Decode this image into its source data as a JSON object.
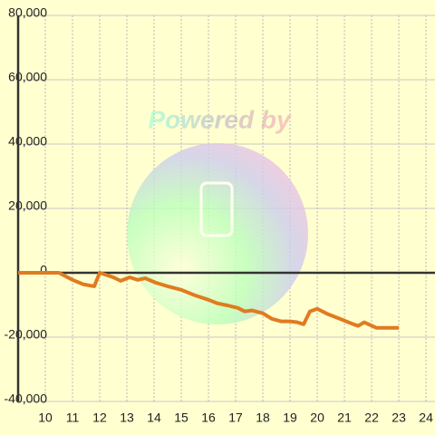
{
  "watermark": "Powered by",
  "chart_data": {
    "type": "line",
    "color": "#e07b20",
    "grid": true,
    "x": [
      9,
      10.5,
      11,
      11.4,
      11.8,
      12,
      12.5,
      12.77,
      13.1,
      13.4,
      13.67,
      14.07,
      14.5,
      15,
      15.5,
      16,
      16.33,
      16.67,
      17.07,
      17.33,
      17.6,
      18,
      18.33,
      18.67,
      19,
      19.27,
      19.5,
      19.73,
      20,
      20.4,
      20.83,
      21.33,
      21.5,
      21.73,
      22.17,
      23
    ],
    "values": [
      0,
      0,
      -2200,
      -3600,
      -4200,
      0,
      -1400,
      -2500,
      -1400,
      -2200,
      -1700,
      -3100,
      -4200,
      -5300,
      -7000,
      -8400,
      -9500,
      -10100,
      -10900,
      -12000,
      -11700,
      -12600,
      -14300,
      -15100,
      -15100,
      -15400,
      -16000,
      -12000,
      -11200,
      -12900,
      -14300,
      -16000,
      -16500,
      -15400,
      -17100,
      -17100
    ],
    "xlim": [
      9,
      24.33
    ],
    "xticks": [
      10,
      11,
      12,
      13,
      14,
      15,
      16,
      17,
      18,
      19,
      20,
      21,
      22,
      23,
      24
    ],
    "ylim": [
      -40000,
      80000
    ],
    "yticks": [
      {
        "value": -40000,
        "label": "-40,000"
      },
      {
        "value": -20000,
        "label": "-20,000"
      },
      0,
      {
        "value": 20000,
        "label": "20,000"
      },
      {
        "value": 40000,
        "label": "40,000"
      },
      {
        "value": 60000,
        "label": "60,000"
      },
      {
        "value": 80000,
        "label": "80,000"
      }
    ]
  }
}
